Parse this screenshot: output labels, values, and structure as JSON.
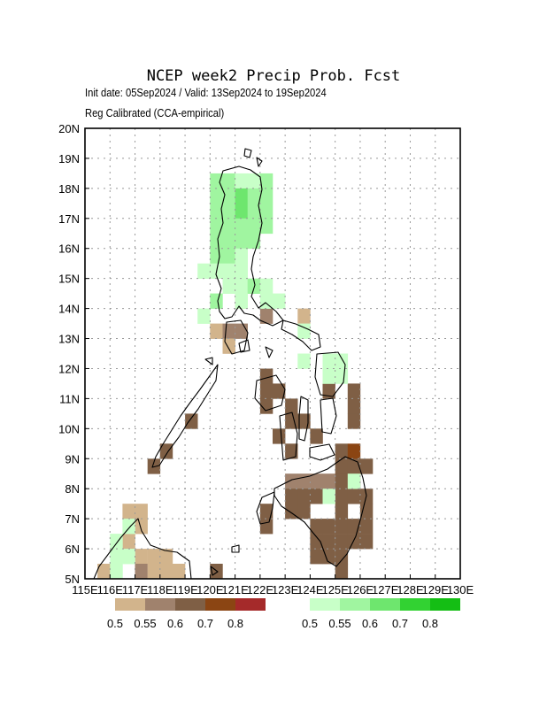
{
  "title": "NCEP week2 Precip Prob. Fcst",
  "subtitle_1": "Init date: 05Sep2024 / Valid: 13Sep2024 to 19Sep2024",
  "subtitle_2": "Reg Calibrated (CCA-empirical)",
  "map": {
    "lon_range": [
      115,
      130
    ],
    "lat_range": [
      5,
      20
    ],
    "grid_lines": true,
    "x_tick_labels": [
      "115E",
      "116E",
      "117E",
      "118E",
      "119E",
      "120E",
      "121E",
      "122E",
      "123E",
      "124E",
      "125E",
      "126E",
      "127E",
      "128E",
      "129E",
      "130E"
    ],
    "y_tick_labels": [
      "5N",
      "6N",
      "7N",
      "8N",
      "9N",
      "10N",
      "11N",
      "12N",
      "13N",
      "14N",
      "15N",
      "16N",
      "17N",
      "18N",
      "19N",
      "20N"
    ]
  },
  "legend_below": {
    "labels": [
      "0.5",
      "0.55",
      "0.6",
      "0.7",
      "0.8"
    ],
    "colors": [
      "#d2b48c",
      "#a0826d",
      "#7f5f45",
      "#8b4513",
      "#a52a2a"
    ]
  },
  "legend_above": {
    "labels": [
      "0.5",
      "0.55",
      "0.6",
      "0.7",
      "0.8"
    ],
    "colors": [
      "#c8ffc8",
      "#a0f5a0",
      "#6ee66e",
      "#32d232",
      "#14be14"
    ]
  },
  "cells_above": [
    [
      20,
      18,
      1
    ],
    [
      20.5,
      18,
      1
    ],
    [
      21,
      18,
      0
    ],
    [
      21.5,
      18,
      0
    ],
    [
      22,
      18,
      1
    ],
    [
      20,
      17.5,
      1
    ],
    [
      20.5,
      17.5,
      1
    ],
    [
      21,
      17.5,
      2
    ],
    [
      21.5,
      17.5,
      1
    ],
    [
      22,
      17.5,
      1
    ],
    [
      20,
      17,
      1
    ],
    [
      20.5,
      17,
      1
    ],
    [
      21,
      17,
      2
    ],
    [
      21.5,
      17,
      1
    ],
    [
      22,
      17,
      1
    ],
    [
      20,
      16.5,
      1
    ],
    [
      20.5,
      16.5,
      1
    ],
    [
      21,
      16.5,
      1
    ],
    [
      21.5,
      16.5,
      1
    ],
    [
      22,
      16.5,
      1
    ],
    [
      20,
      16,
      1
    ],
    [
      20.5,
      16,
      1
    ],
    [
      21,
      16,
      1
    ],
    [
      21.5,
      16,
      1
    ],
    [
      20,
      15.5,
      1
    ],
    [
      20.5,
      15.5,
      1
    ],
    [
      21,
      15.5,
      0
    ],
    [
      19.5,
      15,
      0
    ],
    [
      20,
      15,
      0
    ],
    [
      20.5,
      15,
      0
    ],
    [
      21,
      15,
      0
    ],
    [
      20.5,
      14.5,
      0
    ],
    [
      21,
      14.5,
      0
    ],
    [
      21.5,
      14.5,
      1
    ],
    [
      22,
      14.5,
      0
    ],
    [
      20,
      14,
      1
    ],
    [
      21,
      14,
      0
    ],
    [
      22,
      14,
      0
    ],
    [
      22.5,
      14,
      0
    ],
    [
      19.5,
      13.5,
      0
    ],
    [
      23.5,
      13,
      0
    ],
    [
      23.5,
      12,
      0
    ],
    [
      24.5,
      12,
      0
    ],
    [
      25,
      12,
      0
    ],
    [
      24.5,
      11.5,
      0
    ],
    [
      25,
      11.5,
      0
    ],
    [
      24.5,
      7.5,
      0
    ],
    [
      25.5,
      8,
      0
    ]
  ],
  "cells_below": [
    [
      21,
      14,
      0
    ],
    [
      20,
      13,
      0
    ],
    [
      20.5,
      13,
      1
    ],
    [
      21,
      13,
      1
    ],
    [
      20.5,
      12.5,
      0
    ],
    [
      23.5,
      13.5,
      0
    ],
    [
      22,
      13.5,
      1
    ],
    [
      22,
      11.5,
      2
    ],
    [
      22,
      11,
      2
    ],
    [
      22.5,
      11,
      2
    ],
    [
      22,
      10.5,
      2
    ],
    [
      23,
      10.5,
      2
    ],
    [
      23,
      10,
      2
    ],
    [
      23.5,
      10,
      2
    ],
    [
      22.5,
      9.5,
      2
    ],
    [
      23,
      9,
      2
    ],
    [
      24,
      9.5,
      2
    ],
    [
      24.5,
      11,
      2
    ],
    [
      25.5,
      11,
      2
    ],
    [
      25.5,
      10.5,
      2
    ],
    [
      25.5,
      10,
      2
    ],
    [
      25,
      9,
      2
    ],
    [
      25.5,
      9,
      3
    ],
    [
      25,
      8.5,
      2
    ],
    [
      25.5,
      8.5,
      2
    ],
    [
      26,
      8.5,
      2
    ],
    [
      23,
      8,
      1
    ],
    [
      23.5,
      8,
      1
    ],
    [
      24,
      8,
      1
    ],
    [
      24.5,
      8,
      1
    ],
    [
      25,
      8,
      2
    ],
    [
      25.5,
      8,
      2
    ],
    [
      23,
      7.5,
      2
    ],
    [
      23.5,
      7.5,
      2
    ],
    [
      24,
      7.5,
      2
    ],
    [
      25,
      7.5,
      2
    ],
    [
      25.5,
      7.5,
      2
    ],
    [
      26,
      7.5,
      2
    ],
    [
      22,
      7,
      2
    ],
    [
      23,
      7,
      2
    ],
    [
      23.5,
      7,
      2
    ],
    [
      25,
      7,
      2
    ],
    [
      26,
      7,
      2
    ],
    [
      22,
      6.5,
      2
    ],
    [
      24,
      6.5,
      2
    ],
    [
      24.5,
      6.5,
      2
    ],
    [
      25,
      6.5,
      2
    ],
    [
      25.5,
      6.5,
      2
    ],
    [
      26,
      6.5,
      2
    ],
    [
      24,
      6,
      2
    ],
    [
      24.5,
      6,
      2
    ],
    [
      25,
      6,
      2
    ],
    [
      25.5,
      6,
      2
    ],
    [
      26,
      6,
      2
    ],
    [
      24,
      5.5,
      2
    ],
    [
      24.5,
      5.5,
      2
    ],
    [
      25,
      5.5,
      2
    ],
    [
      25,
      5,
      2
    ],
    [
      19,
      10,
      2
    ],
    [
      18,
      9,
      2
    ],
    [
      17.5,
      8.5,
      2
    ],
    [
      16.5,
      7,
      0
    ],
    [
      17,
      7,
      0
    ],
    [
      17,
      6.5,
      0
    ],
    [
      16.5,
      6,
      0
    ],
    [
      17,
      5.5,
      0
    ],
    [
      17.5,
      5.5,
      0
    ],
    [
      18,
      5.5,
      0
    ],
    [
      17,
      5,
      1
    ],
    [
      17.5,
      5,
      0
    ],
    [
      18,
      5,
      0
    ],
    [
      18.5,
      5,
      0
    ],
    [
      20,
      5,
      2
    ],
    [
      15.5,
      5,
      0
    ]
  ],
  "cells_above_late": [
    [
      16.5,
      6.5,
      0
    ],
    [
      16,
      6,
      0
    ],
    [
      16.5,
      5.5,
      0
    ],
    [
      16,
      5.5,
      0
    ],
    [
      16,
      5,
      0
    ]
  ]
}
